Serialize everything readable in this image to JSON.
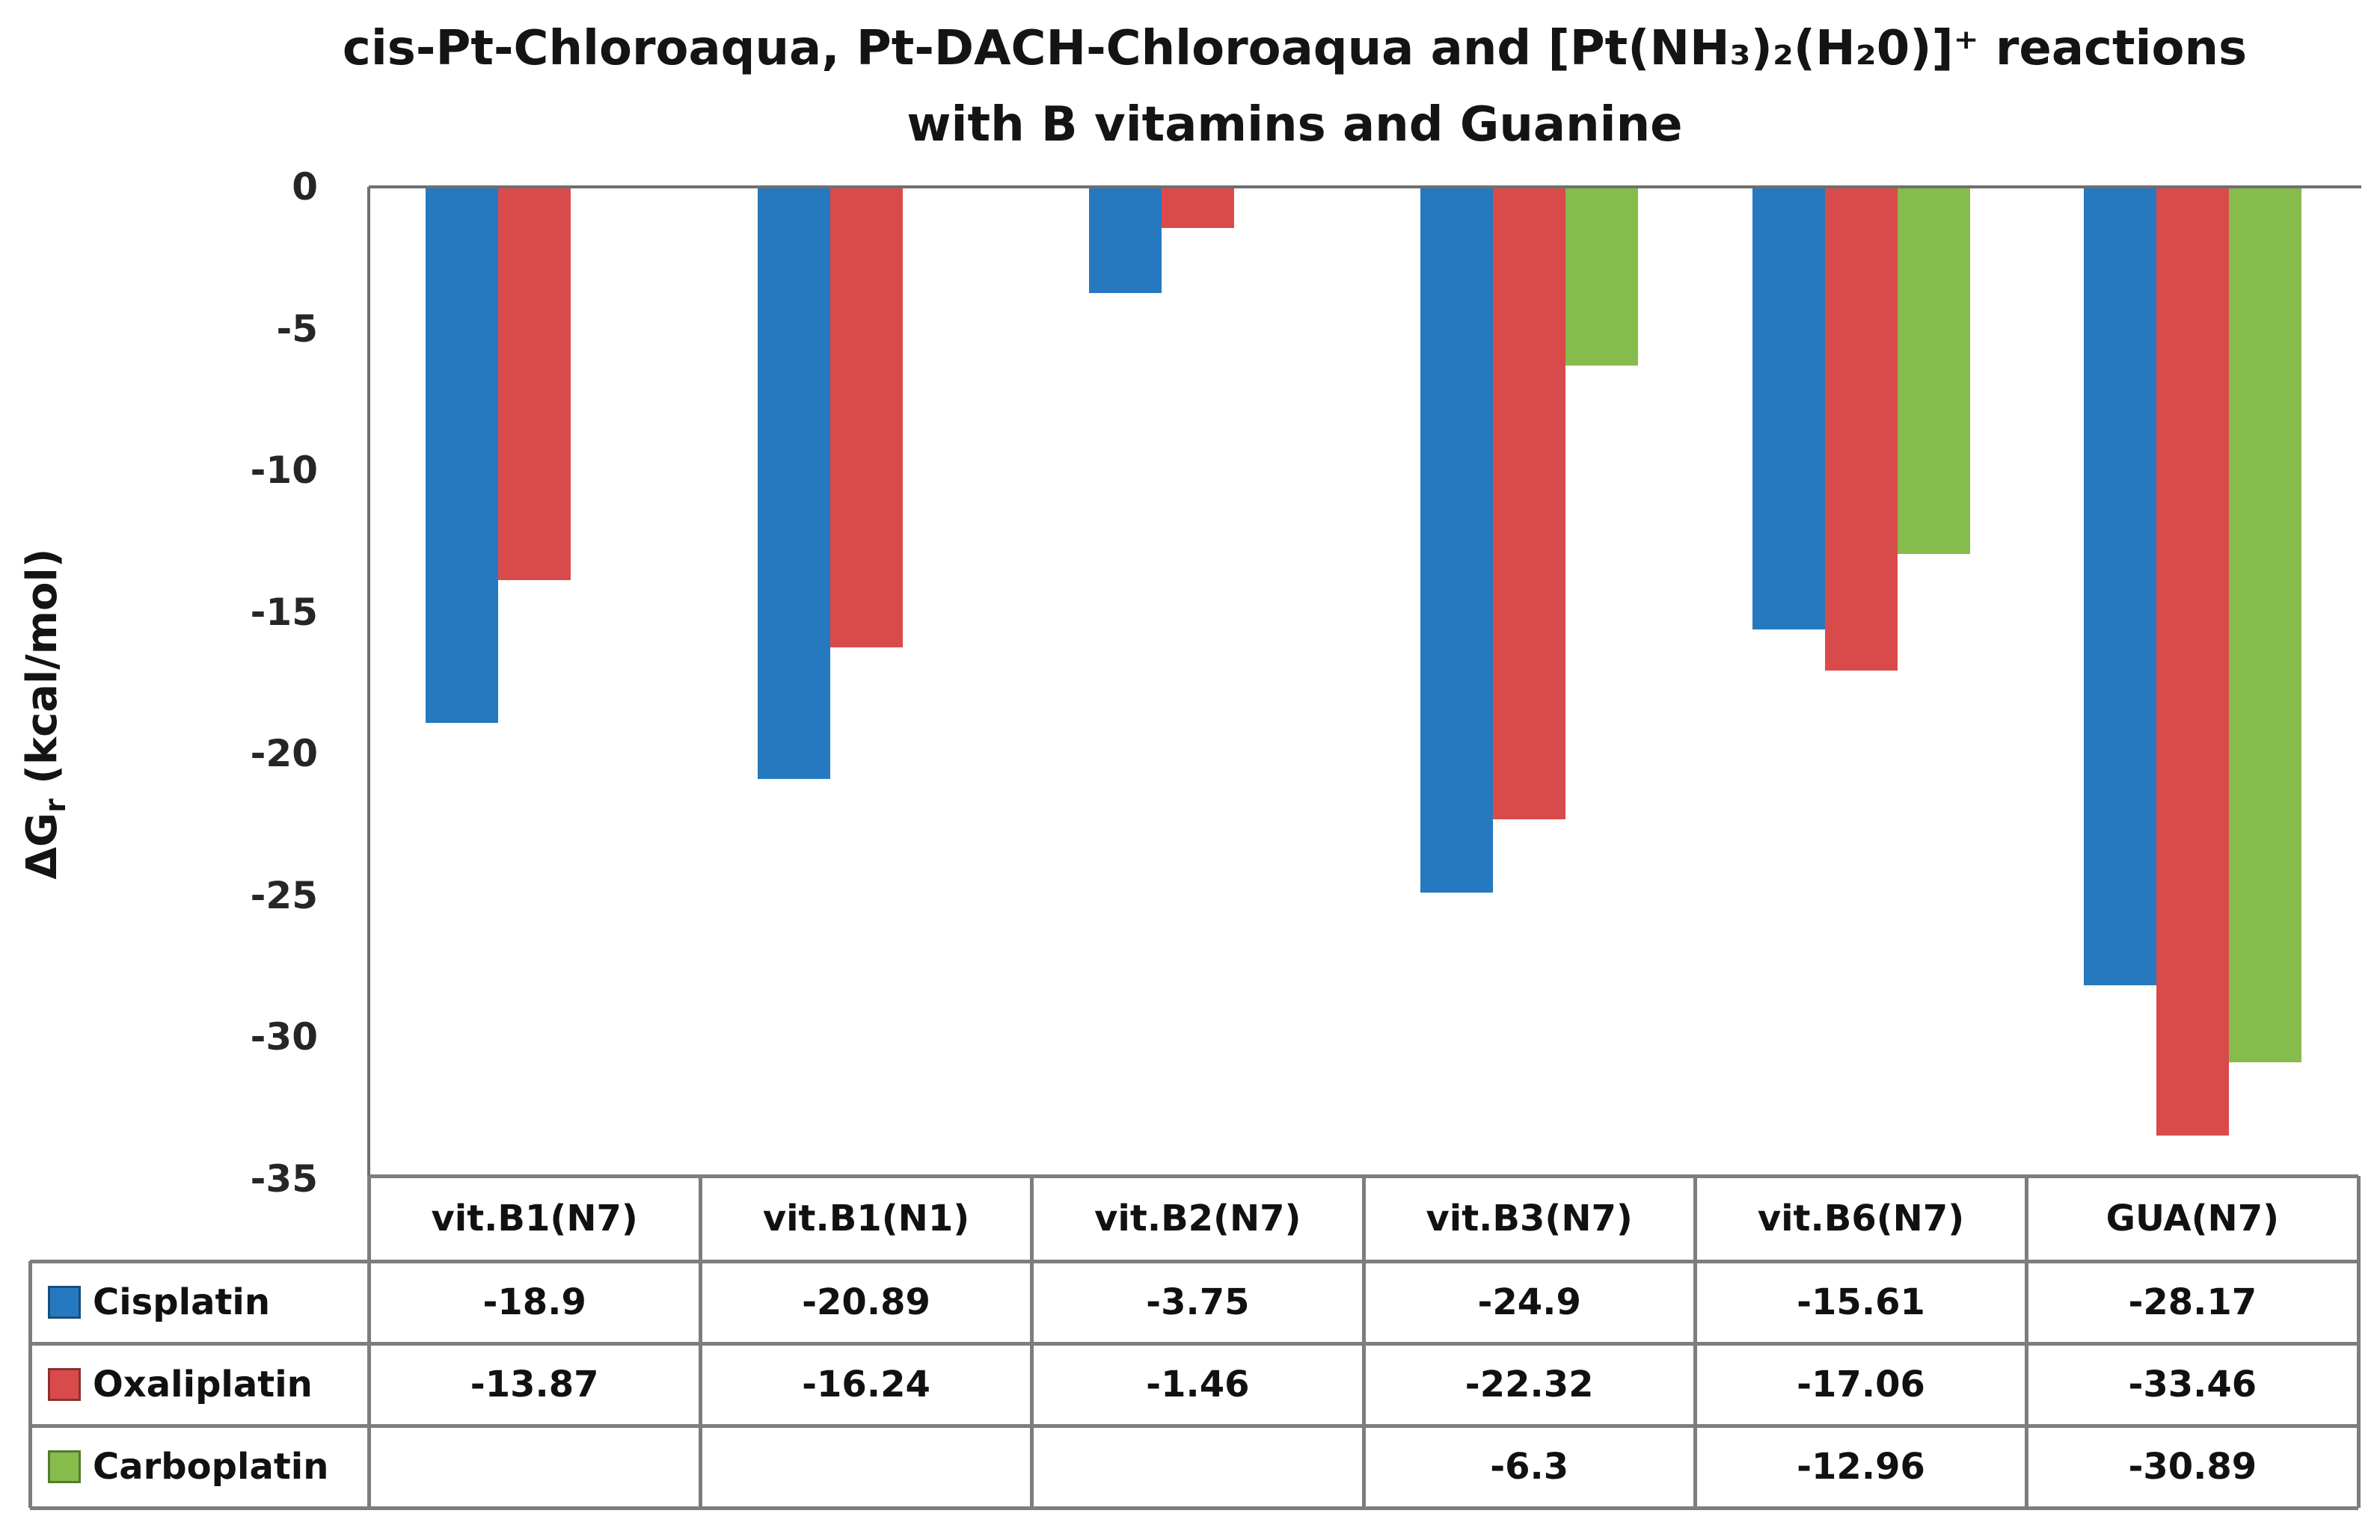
{
  "title": {
    "line1": "cis-Pt-Chloroaqua, Pt-DACH-Chloroaqua and [Pt(NH₃)₂(H₂0)]⁺ reactions",
    "line2": "with B vitamins and Guanine"
  },
  "axes": {
    "y_title_main": "ΔG",
    "y_title_sub": "r",
    "y_title_unit": " (kcal/mol)",
    "y_tick_labels": [
      "0",
      "-5",
      "-10",
      "-15",
      "-20",
      "-25",
      "-30",
      "-35"
    ]
  },
  "legend": {
    "items": [
      {
        "label": "Cisplatin",
        "color": "#2679bf"
      },
      {
        "label": "Oxaliplatin",
        "color": "#d94b4b"
      },
      {
        "label": "Carboplatin",
        "color": "#85bc4b"
      }
    ]
  },
  "table": {
    "column_headers": [
      "vit.B1(N7)",
      "vit.B1(N1)",
      "vit.B2(N7)",
      "vit.B3(N7)",
      "vit.B6(N7)",
      "GUA(N7)"
    ],
    "rows": [
      {
        "label": "Cisplatin",
        "swatch_color": "#2679bf",
        "values": [
          "-18.9",
          "-20.89",
          "-3.75",
          "-24.9",
          "-15.61",
          "-28.17"
        ]
      },
      {
        "label": "Oxaliplatin",
        "swatch_color": "#d94b4b",
        "values": [
          "-13.87",
          "-16.24",
          "-1.46",
          "-22.32",
          "-17.06",
          "-33.46"
        ]
      },
      {
        "label": "Carboplatin",
        "swatch_color": "#85bc4b",
        "values": [
          "",
          "",
          "",
          "-6.3",
          "-12.96",
          "-30.89"
        ]
      }
    ]
  },
  "chart_data": {
    "type": "bar",
    "title": "cis-Pt-Chloroaqua, Pt-DACH-Chloroaqua and [Pt(NH₃)₂(H₂0)]⁺ reactions with B vitamins and Guanine",
    "xlabel": "",
    "ylabel": "ΔGr (kcal/mol)",
    "categories": [
      "vit.B1(N7)",
      "vit.B1(N1)",
      "vit.B2(N7)",
      "vit.B3(N7)",
      "vit.B6(N7)",
      "GUA(N7)"
    ],
    "series": [
      {
        "name": "Cisplatin",
        "color": "#2679bf",
        "values": [
          -18.9,
          -20.89,
          -3.75,
          -24.9,
          -15.61,
          -28.17
        ]
      },
      {
        "name": "Oxaliplatin",
        "color": "#d94b4b",
        "values": [
          -13.87,
          -16.24,
          -1.46,
          -22.32,
          -17.06,
          -33.46
        ]
      },
      {
        "name": "Carboplatin",
        "color": "#85bc4b",
        "values": [
          null,
          null,
          null,
          -6.3,
          -12.96,
          -30.89
        ]
      }
    ],
    "ylim": [
      -35,
      0
    ],
    "yticks": [
      0,
      -5,
      -10,
      -15,
      -20,
      -25,
      -30,
      -35
    ],
    "grid": false,
    "legend_position": "data-table-left",
    "colors": {
      "cisplatin": "#2679bf",
      "oxaliplatin": "#d94b4b",
      "carboplatin": "#85bc4b",
      "axis_line": "#6f6f6f",
      "table_border": "#7d7d7d",
      "text": "#1a1a1a"
    }
  }
}
